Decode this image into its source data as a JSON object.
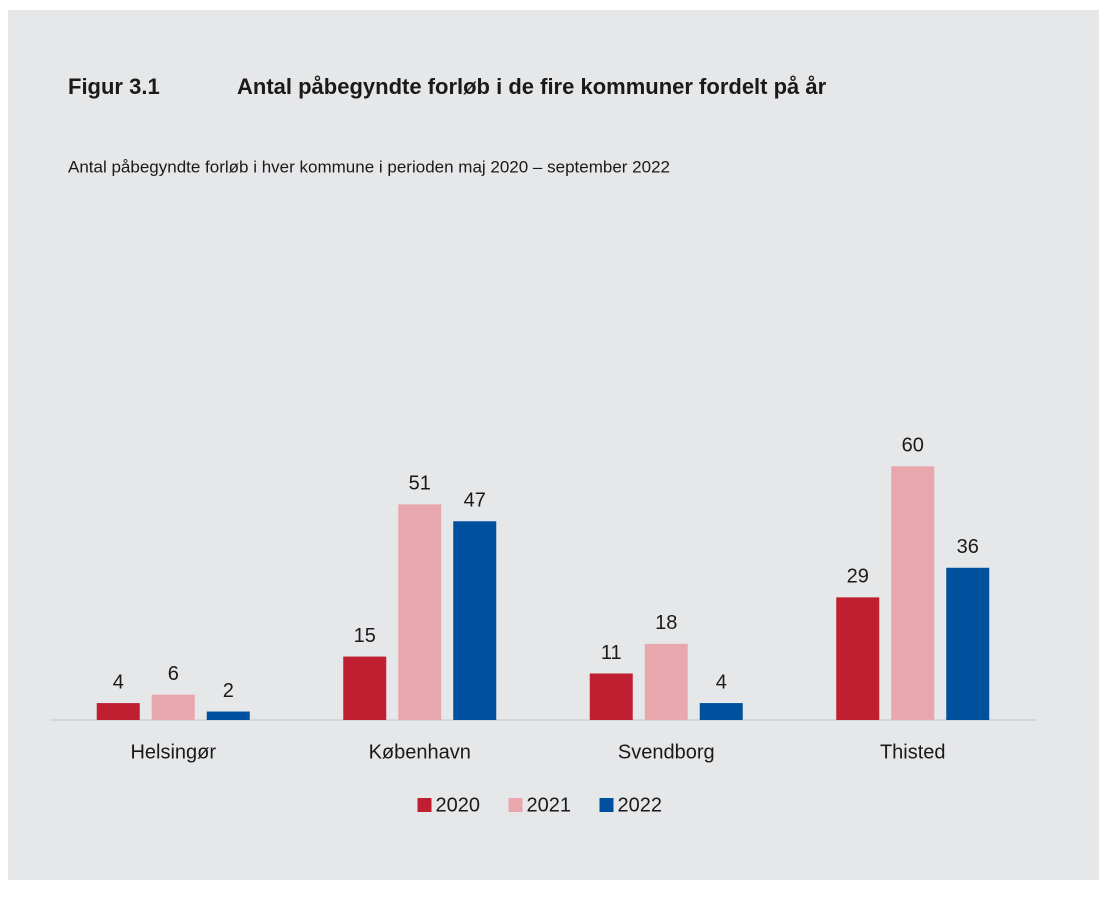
{
  "chart_data": {
    "type": "bar",
    "figure_label": "Figur 3.1",
    "title": "Antal påbegyndte forløb i de fire kommuner fordelt på år",
    "subtitle": "Antal påbegyndte forløb i hver kommune i perioden maj 2020 – september 2022",
    "categories": [
      "Helsingør",
      "København",
      "Svendborg",
      "Thisted"
    ],
    "series": [
      {
        "name": "2020",
        "color": "#c01f32",
        "values": [
          4,
          15,
          11,
          29
        ]
      },
      {
        "name": "2021",
        "color": "#e8a7ac",
        "values": [
          6,
          51,
          18,
          60
        ]
      },
      {
        "name": "2022",
        "color": "#00509e",
        "values": [
          2,
          47,
          4,
          36
        ]
      }
    ],
    "ylim": [
      0,
      70
    ]
  }
}
